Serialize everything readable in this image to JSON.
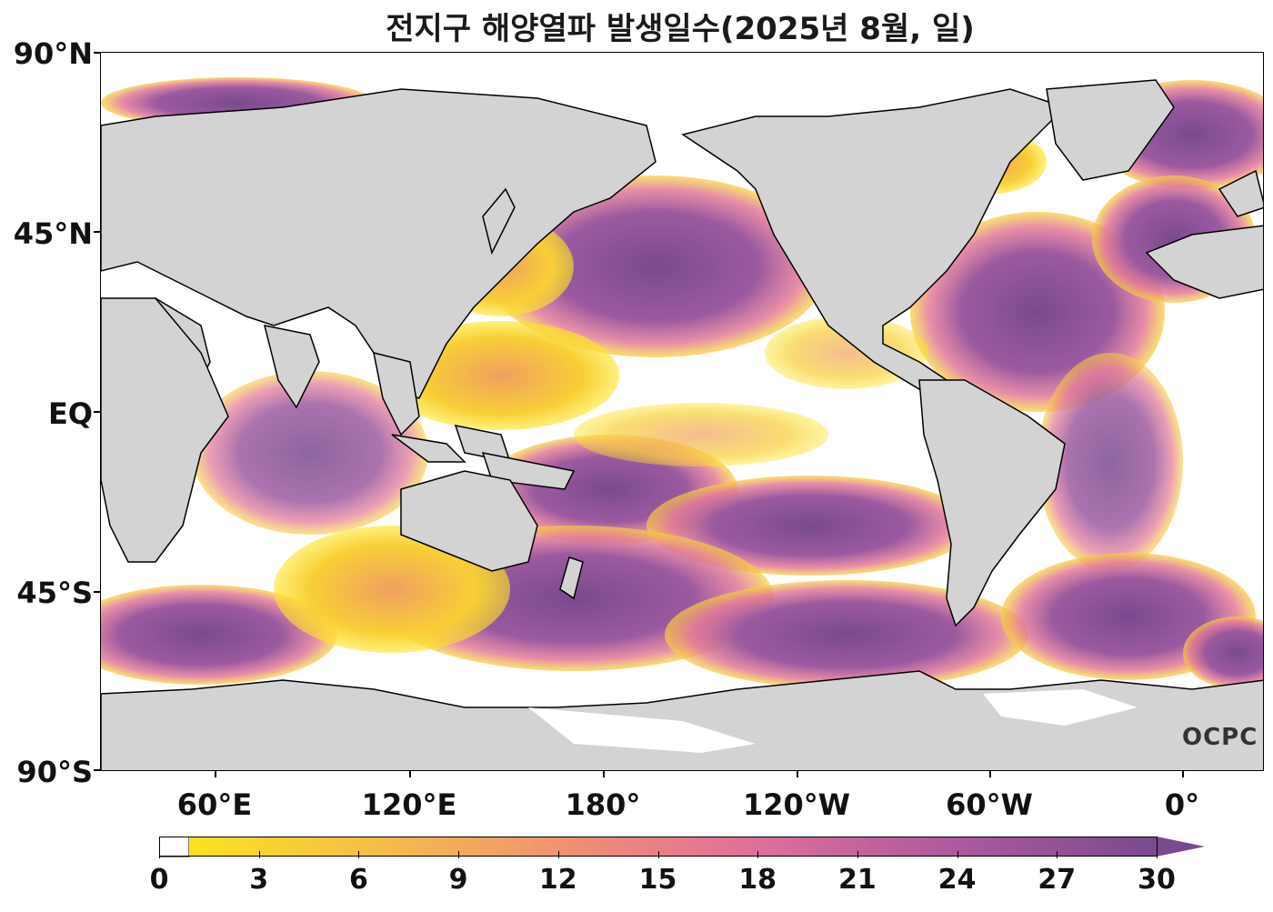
{
  "title": "전지구 해양열파 발생일수(2025년 8월, 일)",
  "logo_text": "OCPC",
  "latitude_labels": [
    "90°N",
    "45°N",
    "EQ",
    "45°S",
    "90°S"
  ],
  "longitude_labels": [
    "60°E",
    "120°E",
    "180°",
    "120°W",
    "60°W",
    "0°"
  ],
  "colorbar": {
    "ticks": [
      "0",
      "3",
      "6",
      "9",
      "12",
      "15",
      "18",
      "21",
      "24",
      "27",
      "30"
    ],
    "min": 0,
    "max": 30,
    "extend": "max",
    "colors": [
      "#ffffff",
      "#fae21e",
      "#f6b84e",
      "#ef8a78",
      "#e0709a",
      "#b05a9e",
      "#7a4a8e"
    ]
  },
  "colors": {
    "land": "#d3d3d3",
    "ocean_none": "#ffffff",
    "coast": "#000000"
  }
}
